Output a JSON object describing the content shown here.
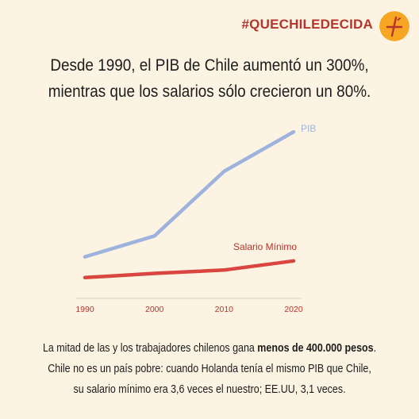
{
  "hashtag": "#QUECHILEDECIDA",
  "badge": {
    "icon": "plus-minus-logo-icon",
    "bg": "#f6a623",
    "mark": "#b5342c"
  },
  "headline": {
    "line1": "Desde 1990, el  PIB de Chile aumentó un 300%,",
    "line2": "mientras que  los salarios sólo crecieron un 80%."
  },
  "chart_data": {
    "type": "line",
    "title": "",
    "xlabel": "",
    "ylabel": "",
    "x": [
      "1990",
      "2000",
      "2010",
      "2020"
    ],
    "ylim": [
      0,
      450
    ],
    "grid": false,
    "y_axis_visible": false,
    "series": [
      {
        "name": "PIB",
        "color": "#9db3dd",
        "values": [
          100,
          150,
          305,
          400
        ]
      },
      {
        "name": "Salario Mínimo",
        "color": "#d9463f",
        "values": [
          50,
          60,
          68,
          90
        ]
      }
    ]
  },
  "footer": {
    "line1_pre": "La mitad de las y los trabajadores chilenos gana ",
    "line1_bold": "menos de 400.000 pesos",
    "line1_post": ".",
    "line2": "Chile no es un país pobre: cuando Holanda tenía el mismo PIB que Chile,",
    "line3": "su salario mínimo era 3,6 veces el nuestro; EE.UU, 3,1 veces."
  },
  "colors": {
    "background": "#fdf3e3",
    "axis_text": "#b5342c",
    "text": "#1c1c1c"
  }
}
